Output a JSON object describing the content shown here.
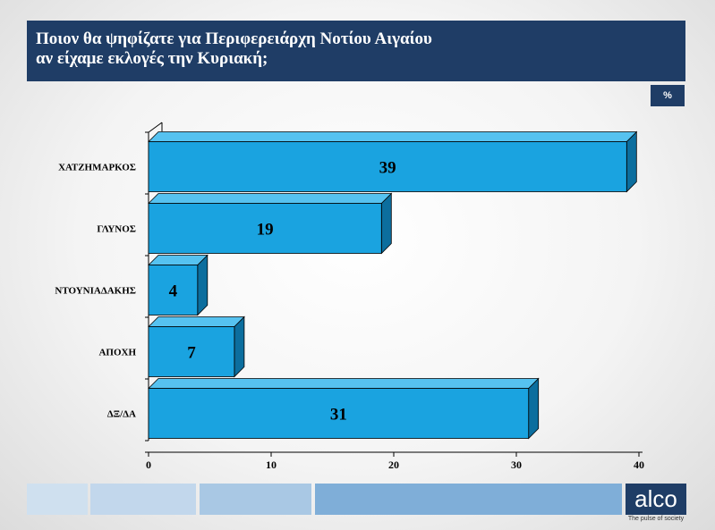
{
  "header": {
    "title_line1": "Ποιον θα ψηφίζατε για Περιφερειάρχη Νοτίου Αιγαίου",
    "title_line2": "αν είχαμε εκλογές την Κυριακή;"
  },
  "unit_badge": "%",
  "chart_data": {
    "type": "bar",
    "orientation": "horizontal",
    "categories": [
      "ΧΑΤΖΗΜΑΡΚΟΣ",
      "ΓΛΥΝΟΣ",
      "ΝΤΟΥΝΙΑΔΑΚΗΣ",
      "ΑΠΟΧΗ",
      "ΔΞ/ΔΑ"
    ],
    "values": [
      39,
      19,
      4,
      7,
      31
    ],
    "xlim": [
      0,
      40
    ],
    "xticks": [
      0,
      10,
      20,
      30,
      40
    ],
    "grid": false,
    "bar_color": "#1aa3e0"
  },
  "logo": {
    "text": "alco",
    "tagline": "The pulse of society"
  },
  "colors": {
    "header_bg": "#1f3d66",
    "bar_front": "#1aa3e0",
    "bar_top": "#56c2f0",
    "bar_side": "#0c6e9e"
  }
}
